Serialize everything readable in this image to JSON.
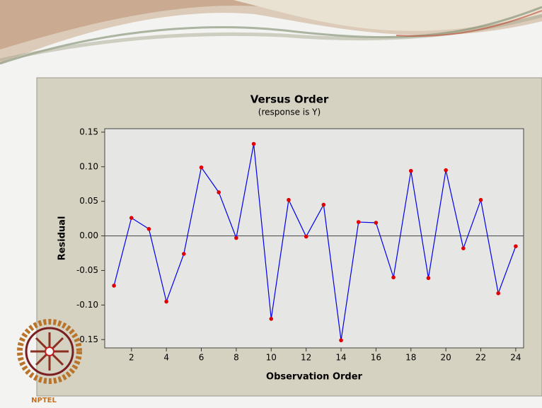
{
  "logo": "NPTEL",
  "chart_data": {
    "type": "line",
    "title": "Versus Order",
    "subtitle": "(response is Y)",
    "xlabel": "Observation Order",
    "ylabel": "Residual",
    "x": [
      1,
      2,
      3,
      4,
      5,
      6,
      7,
      8,
      9,
      10,
      11,
      12,
      13,
      14,
      15,
      16,
      17,
      18,
      19,
      20,
      21,
      22,
      23,
      24
    ],
    "series": [
      {
        "color": "#0000ee",
        "marker_color": "#e00000",
        "values": [
          -0.072,
          0.026,
          0.01,
          -0.095,
          -0.026,
          0.099,
          0.063,
          -0.003,
          0.133,
          -0.12,
          0.052,
          -0.001,
          0.045,
          -0.151,
          0.02,
          0.019,
          -0.06,
          0.094,
          -0.061,
          0.095,
          -0.018,
          0.052,
          -0.083,
          -0.015
        ]
      }
    ],
    "xlim": [
      0.47,
      24.45
    ],
    "ylim": [
      -0.162,
      0.155
    ],
    "xticks": [
      2,
      4,
      6,
      8,
      10,
      12,
      14,
      16,
      18,
      20,
      22,
      24
    ],
    "yticks": [
      {
        "value": 0.15,
        "label": "0.15"
      },
      {
        "value": 0.1,
        "label": "0.10"
      },
      {
        "value": 0.05,
        "label": "0.05"
      },
      {
        "value": 0,
        "label": "0.00"
      },
      {
        "value": -0.05,
        "label": "-0.05"
      },
      {
        "value": -0.1,
        "label": "-0.10"
      },
      {
        "value": -0.15,
        "label": "-0.15"
      }
    ],
    "reference_line": 0,
    "grid": false
  }
}
